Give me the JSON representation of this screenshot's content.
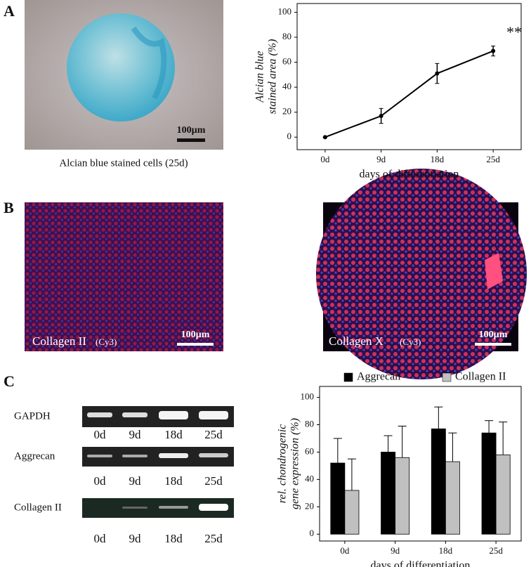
{
  "panel_labels": [
    "A",
    "B",
    "C"
  ],
  "panel_a": {
    "caption": "Alcian blue stained cells (25d)",
    "scale_bar": "100µm"
  },
  "panel_b": {
    "images": [
      {
        "label": "Collagen II",
        "stain": "(Cy3)",
        "scale_bar": "100µm"
      },
      {
        "label": "Collagen X",
        "stain": "(Cy3)",
        "scale_bar": "100µm"
      }
    ]
  },
  "panel_c": {
    "gel": {
      "genes": [
        "GAPDH",
        "Aggrecan",
        "Collagen II"
      ],
      "lanes": [
        "0d",
        "9d",
        "18d",
        "25d"
      ]
    }
  },
  "chart_data": [
    {
      "type": "line",
      "y_label": [
        "Alcian blue",
        "stained area (%)"
      ],
      "x_label": "days of differentiation",
      "categories": [
        "0d",
        "9d",
        "18d",
        "25d"
      ],
      "series": [
        {
          "color": "#000000",
          "values": [
            0,
            17,
            51,
            69
          ],
          "errors": [
            0,
            6,
            8,
            4
          ]
        }
      ],
      "annotation": "**",
      "ylim": [
        -10,
        107
      ],
      "yticks": [
        0,
        20,
        40,
        60,
        80,
        100
      ]
    },
    {
      "type": "bar",
      "y_label": [
        "rel. chondrogenic",
        "gene expression (%)"
      ],
      "x_label": "days of differentiation",
      "categories": [
        "0d",
        "9d",
        "18d",
        "25d"
      ],
      "series": [
        {
          "name": "Aggrecan",
          "color": "#000000",
          "values": [
            52,
            60,
            77,
            74
          ],
          "errors": [
            18,
            12,
            16,
            9
          ]
        },
        {
          "name": "Collagen II",
          "color": "#c0c0c0",
          "values": [
            32,
            56,
            53,
            58
          ],
          "errors": [
            23,
            23,
            21,
            24
          ]
        }
      ],
      "legend": "top",
      "ylim": [
        -5,
        108
      ],
      "yticks": [
        0,
        20,
        40,
        60,
        80,
        100
      ]
    }
  ]
}
